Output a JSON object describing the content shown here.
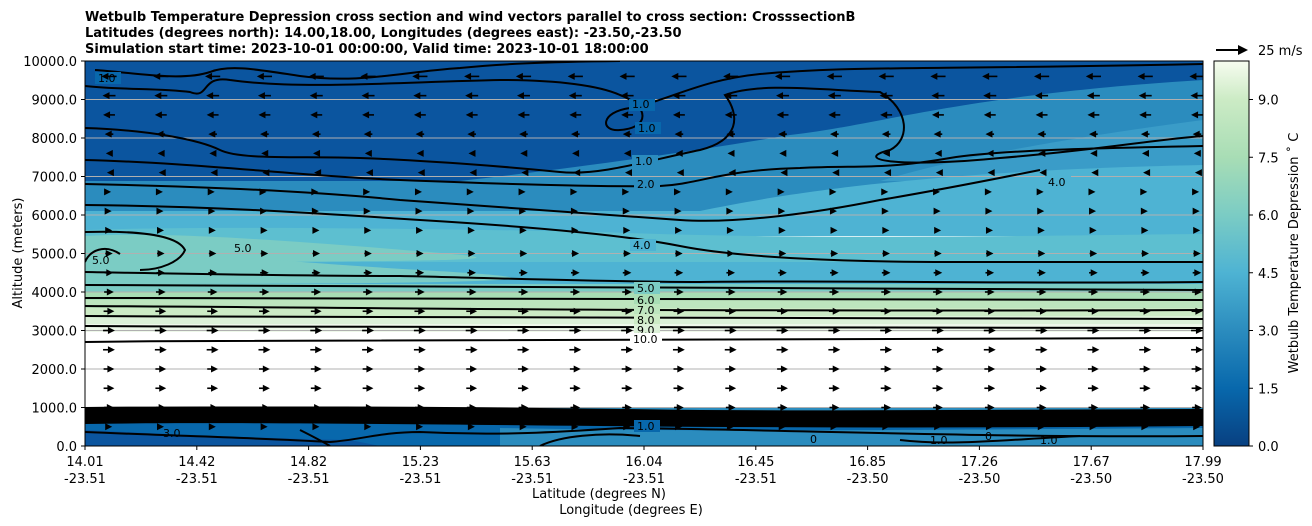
{
  "chart_data": {
    "type": "contour",
    "title_lines": [
      "Wetbulb Temperature Depression cross section and wind vectors parallel to cross section: CrosssectionB",
      "Latitudes (degrees north): 14.00,18.00, Longitudes (degrees east): -23.50,-23.50",
      "Simulation start time: 2023-10-01 00:00:00, Valid time: 2023-10-01 18:00:00"
    ],
    "ylabel": "Altitude (meters)",
    "xlabel_1": "Latitude (degrees N)",
    "xlabel_2": "Longitude (degrees E)",
    "ylim": [
      0,
      10000
    ],
    "y_ticks": [
      "0.0",
      "1000.0",
      "2000.0",
      "3000.0",
      "4000.0",
      "5000.0",
      "6000.0",
      "7000.0",
      "8000.0",
      "9000.0",
      "10000.0"
    ],
    "x_ticks": [
      {
        "lat": "14.01",
        "lon": "-23.51"
      },
      {
        "lat": "14.42",
        "lon": "-23.51"
      },
      {
        "lat": "14.82",
        "lon": "-23.51"
      },
      {
        "lat": "15.23",
        "lon": "-23.51"
      },
      {
        "lat": "15.63",
        "lon": "-23.51"
      },
      {
        "lat": "16.04",
        "lon": "-23.51"
      },
      {
        "lat": "16.45",
        "lon": "-23.51"
      },
      {
        "lat": "16.85",
        "lon": "-23.50"
      },
      {
        "lat": "17.26",
        "lon": "-23.50"
      },
      {
        "lat": "17.67",
        "lon": "-23.50"
      },
      {
        "lat": "17.99",
        "lon": "-23.50"
      }
    ],
    "colorbar": {
      "label": "Wetbulb Temperature Depression $^\\circ$C",
      "label_display": "Wetbulb Temperature Depression ˚ C",
      "range": [
        0,
        10
      ],
      "ticks": [
        "0.0",
        "1.5",
        "3.0",
        "4.5",
        "6.0",
        "7.5",
        "9.0"
      ],
      "colors": [
        "#084081",
        "#0b559f",
        "#0868ac",
        "#1a78b6",
        "#2b8cbe",
        "#3a9cc8",
        "#4eb3d3",
        "#5dbfd0",
        "#6fc6c4",
        "#7bccc4",
        "#8fd3c0",
        "#a8ddb5",
        "#bde5be",
        "#ccebc5",
        "#dcf1d8",
        "#e0f3db",
        "#eef8ea",
        "#f7fcf0"
      ]
    },
    "contour_labels": [
      "1.0",
      "2.0",
      "4.0",
      "5.0",
      "6.0",
      "7.0",
      "8.0",
      "9.0",
      "10.0",
      "3.0",
      "0"
    ],
    "wind_key": "25 m/s",
    "wind_layers": [
      {
        "alt": 9600,
        "dir": "west",
        "speed": 12
      },
      {
        "alt": 9100,
        "dir": "west",
        "speed": 10
      },
      {
        "alt": 8600,
        "dir": "west",
        "speed": 9
      },
      {
        "alt": 8100,
        "dir": "west",
        "speed": 6
      },
      {
        "alt": 7600,
        "dir": "west",
        "speed": 4
      },
      {
        "alt": 7100,
        "dir": "west",
        "speed": 2
      },
      {
        "alt": 6600,
        "dir": "east",
        "speed": 2
      },
      {
        "alt": 6100,
        "dir": "east",
        "speed": 3
      },
      {
        "alt": 5600,
        "dir": "east",
        "speed": 4
      },
      {
        "alt": 5000,
        "dir": "east",
        "speed": 5
      },
      {
        "alt": 4500,
        "dir": "east",
        "speed": 6
      },
      {
        "alt": 4000,
        "dir": "east",
        "speed": 7
      },
      {
        "alt": 3500,
        "dir": "east",
        "speed": 8
      },
      {
        "alt": 3000,
        "dir": "east",
        "speed": 9
      },
      {
        "alt": 2500,
        "dir": "east",
        "speed": 9
      },
      {
        "alt": 2000,
        "dir": "east",
        "speed": 8
      },
      {
        "alt": 1500,
        "dir": "east",
        "speed": 8
      },
      {
        "alt": 1000,
        "dir": "east",
        "speed": 7
      },
      {
        "alt": 500,
        "dir": "east",
        "speed": 4
      }
    ]
  }
}
